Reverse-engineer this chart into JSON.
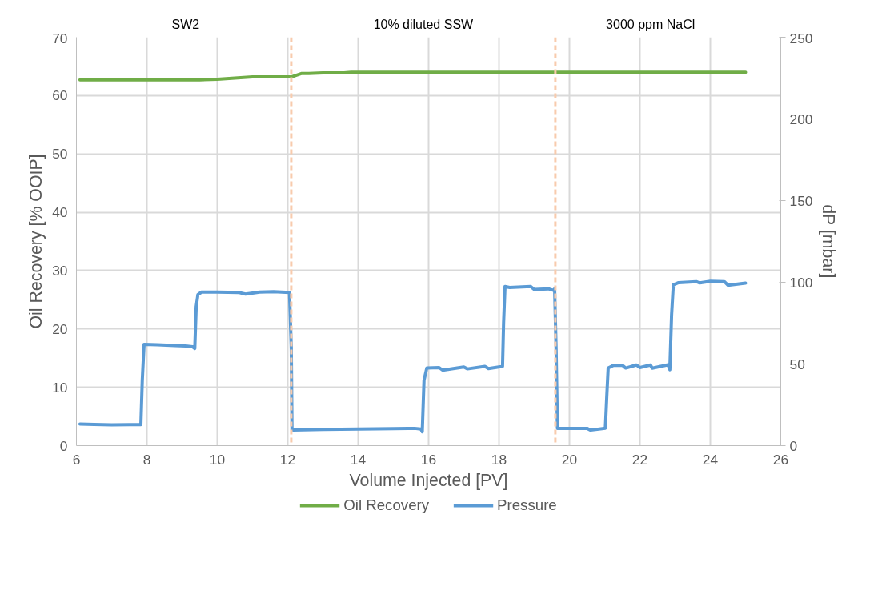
{
  "chart_data": {
    "type": "line",
    "xlabel": "Volume Injected [PV]",
    "ylabel": "Oil Recovery [% OOIP]",
    "y2label": "dP [mbar]",
    "xlim": [
      6,
      26
    ],
    "xticks": [
      6,
      8,
      10,
      12,
      14,
      16,
      18,
      20,
      22,
      24,
      26
    ],
    "ylim": [
      0,
      70
    ],
    "yticks": [
      0,
      10,
      20,
      30,
      40,
      50,
      60,
      70
    ],
    "y2lim": [
      0,
      250
    ],
    "y2ticks": [
      0,
      50,
      100,
      150,
      200,
      250
    ],
    "grid": true,
    "legend": "bottom",
    "marker": "none",
    "line_style": "solid",
    "series": [
      {
        "name": "Oil Recovery",
        "color": "#70ad47",
        "x": [
          6.1,
          7.0,
          8.0,
          9.0,
          9.5,
          10.0,
          10.5,
          11.0,
          11.5,
          12.1,
          12.4,
          12.6,
          13.0,
          13.6,
          13.8,
          14.0,
          16.0,
          18.0,
          20.0,
          22.0,
          24.0,
          25.0
        ],
        "values": [
          62.7,
          62.7,
          62.7,
          62.7,
          62.7,
          62.8,
          63.0,
          63.2,
          63.2,
          63.2,
          63.8,
          63.8,
          63.9,
          63.9,
          64.0,
          64.0,
          64.0,
          64.0,
          64.0,
          64.0,
          64.0,
          64.0
        ]
      },
      {
        "name": "Pressure",
        "color": "#5b9bd5",
        "axis": "y2",
        "x": [
          6.1,
          6.5,
          7.0,
          7.5,
          7.83,
          7.87,
          7.92,
          8.3,
          8.8,
          9.1,
          9.3,
          9.36,
          9.4,
          9.45,
          9.55,
          10.0,
          10.6,
          10.8,
          11.2,
          11.6,
          12.05,
          12.1,
          12.12,
          12.15,
          13.0,
          14.0,
          15.0,
          15.6,
          15.78,
          15.82,
          15.87,
          15.95,
          16.3,
          16.4,
          17.0,
          17.1,
          17.6,
          17.7,
          18.1,
          18.13,
          18.17,
          18.3,
          18.9,
          19.0,
          19.4,
          19.55,
          19.58,
          19.62,
          19.66,
          20.0,
          20.5,
          20.6,
          21.02,
          21.06,
          21.1,
          21.25,
          21.5,
          21.6,
          21.9,
          22.0,
          22.3,
          22.35,
          22.8,
          22.85,
          22.9,
          22.95,
          23.1,
          23.6,
          23.7,
          24.0,
          24.4,
          24.5,
          25.0
        ],
        "values": [
          13.2,
          13.0,
          12.8,
          12.9,
          12.9,
          40,
          62.0,
          61.8,
          61.3,
          61.0,
          60.5,
          59.5,
          85,
          92.5,
          94.0,
          94.0,
          93.8,
          92.8,
          94.0,
          94.2,
          93.8,
          60,
          9.8,
          9.6,
          9.9,
          10.2,
          10.4,
          10.6,
          10.2,
          8.5,
          40,
          47.6,
          47.8,
          46.2,
          48.2,
          47.0,
          48.5,
          47.2,
          48.5,
          75,
          97.4,
          96.8,
          97.4,
          95.6,
          96.0,
          95.0,
          96.0,
          60,
          10.5,
          10.6,
          10.6,
          9.5,
          10.7,
          30,
          47.5,
          49.2,
          49.3,
          47.5,
          49.4,
          47.8,
          49.4,
          47.4,
          49.5,
          46.5,
          80,
          98.5,
          99.8,
          100.4,
          99.6,
          100.6,
          100.4,
          98.2,
          99.5
        ]
      }
    ],
    "ref_lines": [
      {
        "axis": "x",
        "value": 12.1,
        "color": "#f8cbad",
        "line_style": "dashed"
      },
      {
        "axis": "x",
        "value": 19.6,
        "color": "#f8cbad",
        "line_style": "dashed"
      }
    ],
    "annotations": [
      "SW2",
      "10% diluted SSW",
      "3000 ppm NaCl"
    ]
  }
}
